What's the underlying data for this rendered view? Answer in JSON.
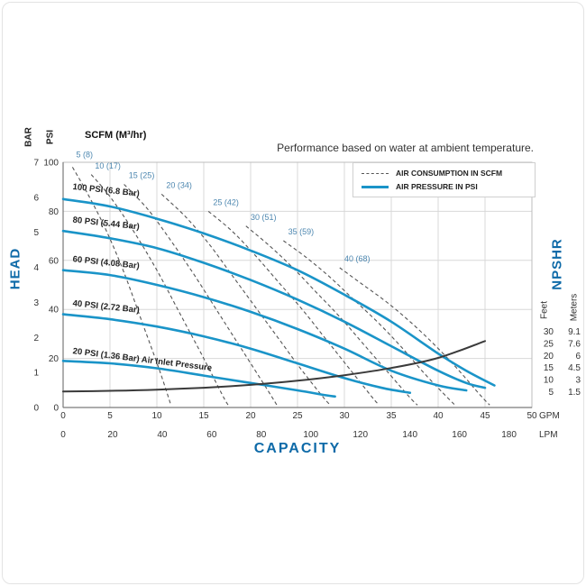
{
  "chart_data": {
    "type": "line",
    "title": "Performance based on water at ambient temperature.",
    "units_note": "SCFM (M³/hr)",
    "legend": [
      {
        "label": "AIR CONSUMPTION IN SCFM",
        "style": "dashed",
        "color": "#555555"
      },
      {
        "label": "AIR PRESSURE IN PSI",
        "style": "solid",
        "color": "#1a94c8"
      }
    ],
    "x_axis": {
      "title": "CAPACITY",
      "unit_primary": "GPM",
      "unit_secondary": "LPM",
      "gpm_max": 50,
      "gpm_ticks": [
        0,
        5,
        10,
        15,
        20,
        25,
        30,
        35,
        40,
        45,
        50
      ],
      "lpm_ticks": [
        0,
        20,
        40,
        60,
        80,
        100,
        120,
        140,
        160,
        180
      ],
      "lpm_per_gpm": 3.785
    },
    "y_axis": {
      "title": "HEAD",
      "psi_label": "PSI",
      "bar_label": "BAR",
      "psi_max": 100,
      "bar_max": 7,
      "psi_ticks": [
        100,
        80,
        60,
        40,
        20,
        0
      ],
      "bar_ticks": [
        7,
        6,
        5,
        4,
        3,
        2,
        1,
        0
      ],
      "grid_psi": [
        20,
        40,
        60,
        80
      ]
    },
    "right_axis": {
      "title": "NPSHR",
      "feet_label": "Feet",
      "meters_label": "Meters",
      "ticks": [
        {
          "feet": "30",
          "meters": "9.1"
        },
        {
          "feet": "25",
          "meters": "7.6"
        },
        {
          "feet": "20",
          "meters": "6"
        },
        {
          "feet": "15",
          "meters": "4.5"
        },
        {
          "feet": "10",
          "meters": "3"
        },
        {
          "feet": "5",
          "meters": "1.5"
        }
      ],
      "anchor": {
        "feet_min": 5,
        "psi_at_feet_min": 6.5,
        "psi_per_foot": 0.98
      }
    },
    "pressure_curves": [
      {
        "label": "100 PSI (6.8 Bar)",
        "label_at": [
          1,
          89
        ],
        "label_rotation": 6,
        "points": [
          [
            0,
            85
          ],
          [
            5,
            82
          ],
          [
            10,
            77
          ],
          [
            15,
            71
          ],
          [
            20,
            64
          ],
          [
            25,
            56
          ],
          [
            30,
            46
          ],
          [
            35,
            35
          ],
          [
            40,
            22
          ],
          [
            43,
            15
          ],
          [
            46,
            9
          ]
        ]
      },
      {
        "label": "80 PSI (5.44 Bar)",
        "label_at": [
          1,
          75.5
        ],
        "label_rotation": 6,
        "points": [
          [
            0,
            72
          ],
          [
            5,
            69
          ],
          [
            10,
            65
          ],
          [
            15,
            59
          ],
          [
            20,
            52
          ],
          [
            25,
            44
          ],
          [
            30,
            35
          ],
          [
            35,
            25
          ],
          [
            40,
            15
          ],
          [
            43,
            10
          ],
          [
            45,
            8
          ]
        ]
      },
      {
        "label": "60 PSI (4.08 Bar)",
        "label_at": [
          1,
          59.5
        ],
        "label_rotation": 6,
        "points": [
          [
            0,
            56
          ],
          [
            5,
            54
          ],
          [
            10,
            50
          ],
          [
            15,
            45
          ],
          [
            20,
            39
          ],
          [
            25,
            32
          ],
          [
            30,
            24
          ],
          [
            35,
            15
          ],
          [
            40,
            9
          ],
          [
            43,
            7
          ]
        ]
      },
      {
        "label": "40 PSI (2.72 Bar)",
        "label_at": [
          1,
          41.5
        ],
        "label_rotation": 6,
        "points": [
          [
            0,
            38
          ],
          [
            5,
            36
          ],
          [
            10,
            33
          ],
          [
            15,
            29
          ],
          [
            20,
            24
          ],
          [
            25,
            18
          ],
          [
            30,
            12
          ],
          [
            34,
            8
          ],
          [
            37,
            6
          ]
        ]
      },
      {
        "label": "20 PSI (1.36 Bar) Air Inlet Pressure",
        "label_at": [
          1,
          22
        ],
        "label_rotation": 7,
        "points": [
          [
            0,
            19
          ],
          [
            5,
            18
          ],
          [
            10,
            16
          ],
          [
            15,
            13
          ],
          [
            20,
            10
          ],
          [
            25,
            7
          ],
          [
            28,
            5
          ],
          [
            29,
            4.5
          ]
        ]
      }
    ],
    "consumption_curves": [
      {
        "label": "5 (8)",
        "label_at": [
          1.4,
          102
        ],
        "points": [
          [
            1,
            98
          ],
          [
            2.5,
            88
          ],
          [
            4.5,
            73
          ],
          [
            6.5,
            55
          ],
          [
            8.5,
            34
          ],
          [
            10.3,
            15
          ],
          [
            11.5,
            1
          ]
        ]
      },
      {
        "label": "10 (17)",
        "label_at": [
          3.4,
          97.5
        ],
        "points": [
          [
            3,
            95
          ],
          [
            5,
            86
          ],
          [
            7.5,
            72
          ],
          [
            10,
            56
          ],
          [
            12.5,
            38
          ],
          [
            15,
            20
          ],
          [
            17,
            5
          ],
          [
            17.6,
            1
          ]
        ]
      },
      {
        "label": "15 (25)",
        "label_at": [
          7,
          93.5
        ],
        "points": [
          [
            6.5,
            91
          ],
          [
            9,
            81
          ],
          [
            11.5,
            68
          ],
          [
            14,
            54
          ],
          [
            16.5,
            39
          ],
          [
            19,
            24
          ],
          [
            21.5,
            9
          ],
          [
            22.8,
            1
          ]
        ]
      },
      {
        "label": "20 (34)",
        "label_at": [
          11,
          89.5
        ],
        "points": [
          [
            10.5,
            87
          ],
          [
            13,
            78
          ],
          [
            15.5,
            67
          ],
          [
            18,
            54
          ],
          [
            20.5,
            41
          ],
          [
            23,
            28
          ],
          [
            25.5,
            15
          ],
          [
            28,
            3
          ],
          [
            28.6,
            1
          ]
        ]
      },
      {
        "label": "25 (42)",
        "label_at": [
          16,
          82.5
        ],
        "points": [
          [
            15.5,
            80
          ],
          [
            18,
            72
          ],
          [
            20.5,
            62
          ],
          [
            23,
            51
          ],
          [
            25.5,
            40
          ],
          [
            28,
            28
          ],
          [
            30.5,
            16
          ],
          [
            33,
            4
          ],
          [
            33.7,
            1
          ]
        ]
      },
      {
        "label": "30 (51)",
        "label_at": [
          20,
          76.5
        ],
        "points": [
          [
            19.5,
            74
          ],
          [
            22,
            66
          ],
          [
            24.5,
            57
          ],
          [
            27,
            47
          ],
          [
            29.5,
            37
          ],
          [
            32,
            26
          ],
          [
            34.5,
            15
          ],
          [
            37,
            4
          ],
          [
            37.8,
            1
          ]
        ]
      },
      {
        "label": "35 (59)",
        "label_at": [
          24,
          70.5
        ],
        "points": [
          [
            23.5,
            68
          ],
          [
            26,
            61
          ],
          [
            28.5,
            53
          ],
          [
            31,
            44
          ],
          [
            33.5,
            35
          ],
          [
            36,
            25
          ],
          [
            38.5,
            14
          ],
          [
            41,
            4
          ],
          [
            41.8,
            1
          ]
        ]
      },
      {
        "label": "40 (68)",
        "label_at": [
          30,
          59.5
        ],
        "points": [
          [
            29.5,
            57
          ],
          [
            32,
            50
          ],
          [
            34.5,
            43
          ],
          [
            37,
            35
          ],
          [
            39.5,
            26
          ],
          [
            42,
            16
          ],
          [
            44.5,
            5
          ],
          [
            45.5,
            1
          ]
        ]
      }
    ],
    "npshr_curve": {
      "name": "NPSHR",
      "color": "#3a3a3a",
      "points_gpm_feet": [
        [
          0,
          5
        ],
        [
          5,
          5.3
        ],
        [
          10,
          5.8
        ],
        [
          15,
          6.6
        ],
        [
          20,
          7.8
        ],
        [
          25,
          9.5
        ],
        [
          30,
          11.8
        ],
        [
          35,
          14.8
        ],
        [
          40,
          19
        ],
        [
          45,
          26
        ]
      ]
    },
    "colors": {
      "pressure": "#1a94c8",
      "consumption": "#555555",
      "consumption_label": "#4d87b0",
      "pressure_label": "#222222",
      "grid": "#d8d8d8",
      "frame": "#bcbcbc",
      "axis_line": "#7a7a7a",
      "axis_text": "#333333",
      "blue_title": "#0e6aa8"
    }
  }
}
